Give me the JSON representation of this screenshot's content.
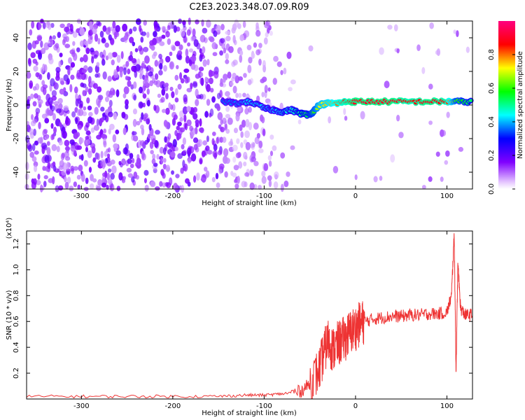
{
  "title": "C2E3.2023.348.07.09.R09",
  "colors": {
    "snr_line": "#ee3333",
    "spectrogram_noise": "#8a2be2",
    "axis": "#000000"
  },
  "chart_data": [
    {
      "type": "heatmap",
      "name": "spectrogram",
      "xlabel": "Height of straight line (km)",
      "ylabel": "Frequency (Hz)",
      "xlim": [
        -360,
        128
      ],
      "ylim": [
        -50,
        50
      ],
      "xticks": [
        -300,
        -200,
        -100,
        0,
        100
      ],
      "yticks": [
        -40,
        -20,
        0,
        20,
        40
      ],
      "xtick_labels": [
        "-300",
        "-200",
        "-100",
        "0",
        "100"
      ],
      "ytick_labels": [
        "-40",
        "-20",
        "0",
        "20",
        "40"
      ],
      "colorbar": {
        "label": "Normalized spectral amplitude",
        "range": [
          0,
          1
        ],
        "ticks": [
          0.0,
          0.2,
          0.4,
          0.6,
          0.8
        ],
        "tick_labels": [
          "0.0",
          "0.2",
          "0.4",
          "0.6",
          "0.8"
        ],
        "colormap": [
          "#ffffff",
          "#8000ff",
          "#0000ff",
          "#00ffff",
          "#00ff00",
          "#ffff00",
          "#ff0000",
          "#ff0080"
        ]
      },
      "signal_track": {
        "x": [
          -145,
          -130,
          -115,
          -100,
          -90,
          -80,
          -70,
          -60,
          -50,
          -45,
          -40,
          -30,
          -20,
          -10,
          0,
          20,
          40,
          60,
          80,
          100,
          110,
          128
        ],
        "y": [
          2,
          1,
          2,
          -2,
          -3,
          -4,
          -3,
          -5,
          -6,
          -3,
          0,
          1,
          1,
          2,
          2,
          2,
          2,
          2,
          2,
          2,
          2,
          2
        ],
        "intensity": [
          0.35,
          0.35,
          0.4,
          0.4,
          0.4,
          0.45,
          0.45,
          0.5,
          0.55,
          0.6,
          0.7,
          0.75,
          0.8,
          0.85,
          0.9,
          0.9,
          0.9,
          0.85,
          0.9,
          0.85,
          0.6,
          0.5
        ]
      }
    },
    {
      "type": "line",
      "name": "snr",
      "xlabel": "Height of straight line (km)",
      "ylabel": "SNR (10 * v/v)",
      "yscale_label": "(x10⁴)",
      "xlim": [
        -360,
        128
      ],
      "ylim": [
        0,
        1.3
      ],
      "xticks": [
        -300,
        -200,
        -100,
        0,
        100
      ],
      "yticks": [
        0.2,
        0.4,
        0.6,
        0.8,
        1.0,
        1.2
      ],
      "xtick_labels": [
        "-300",
        "-200",
        "-100",
        "0",
        "100"
      ],
      "ytick_labels": [
        "0.2",
        "0.4",
        "0.6",
        "0.8",
        "1.0",
        "1.2"
      ],
      "x": [
        -360,
        -300,
        -250,
        -200,
        -150,
        -120,
        -100,
        -80,
        -60,
        -50,
        -40,
        -35,
        -30,
        -25,
        -20,
        -15,
        -10,
        -5,
        0,
        5,
        10,
        20,
        30,
        40,
        50,
        60,
        70,
        80,
        90,
        100,
        105,
        108,
        110,
        112,
        115,
        120,
        128
      ],
      "y": [
        0.02,
        0.02,
        0.02,
        0.02,
        0.02,
        0.03,
        0.03,
        0.04,
        0.06,
        0.12,
        0.22,
        0.35,
        0.45,
        0.38,
        0.42,
        0.45,
        0.48,
        0.52,
        0.55,
        0.58,
        0.6,
        0.62,
        0.63,
        0.64,
        0.64,
        0.65,
        0.65,
        0.66,
        0.66,
        0.67,
        0.8,
        1.28,
        0.2,
        1.05,
        0.7,
        0.65,
        0.65
      ]
    }
  ]
}
